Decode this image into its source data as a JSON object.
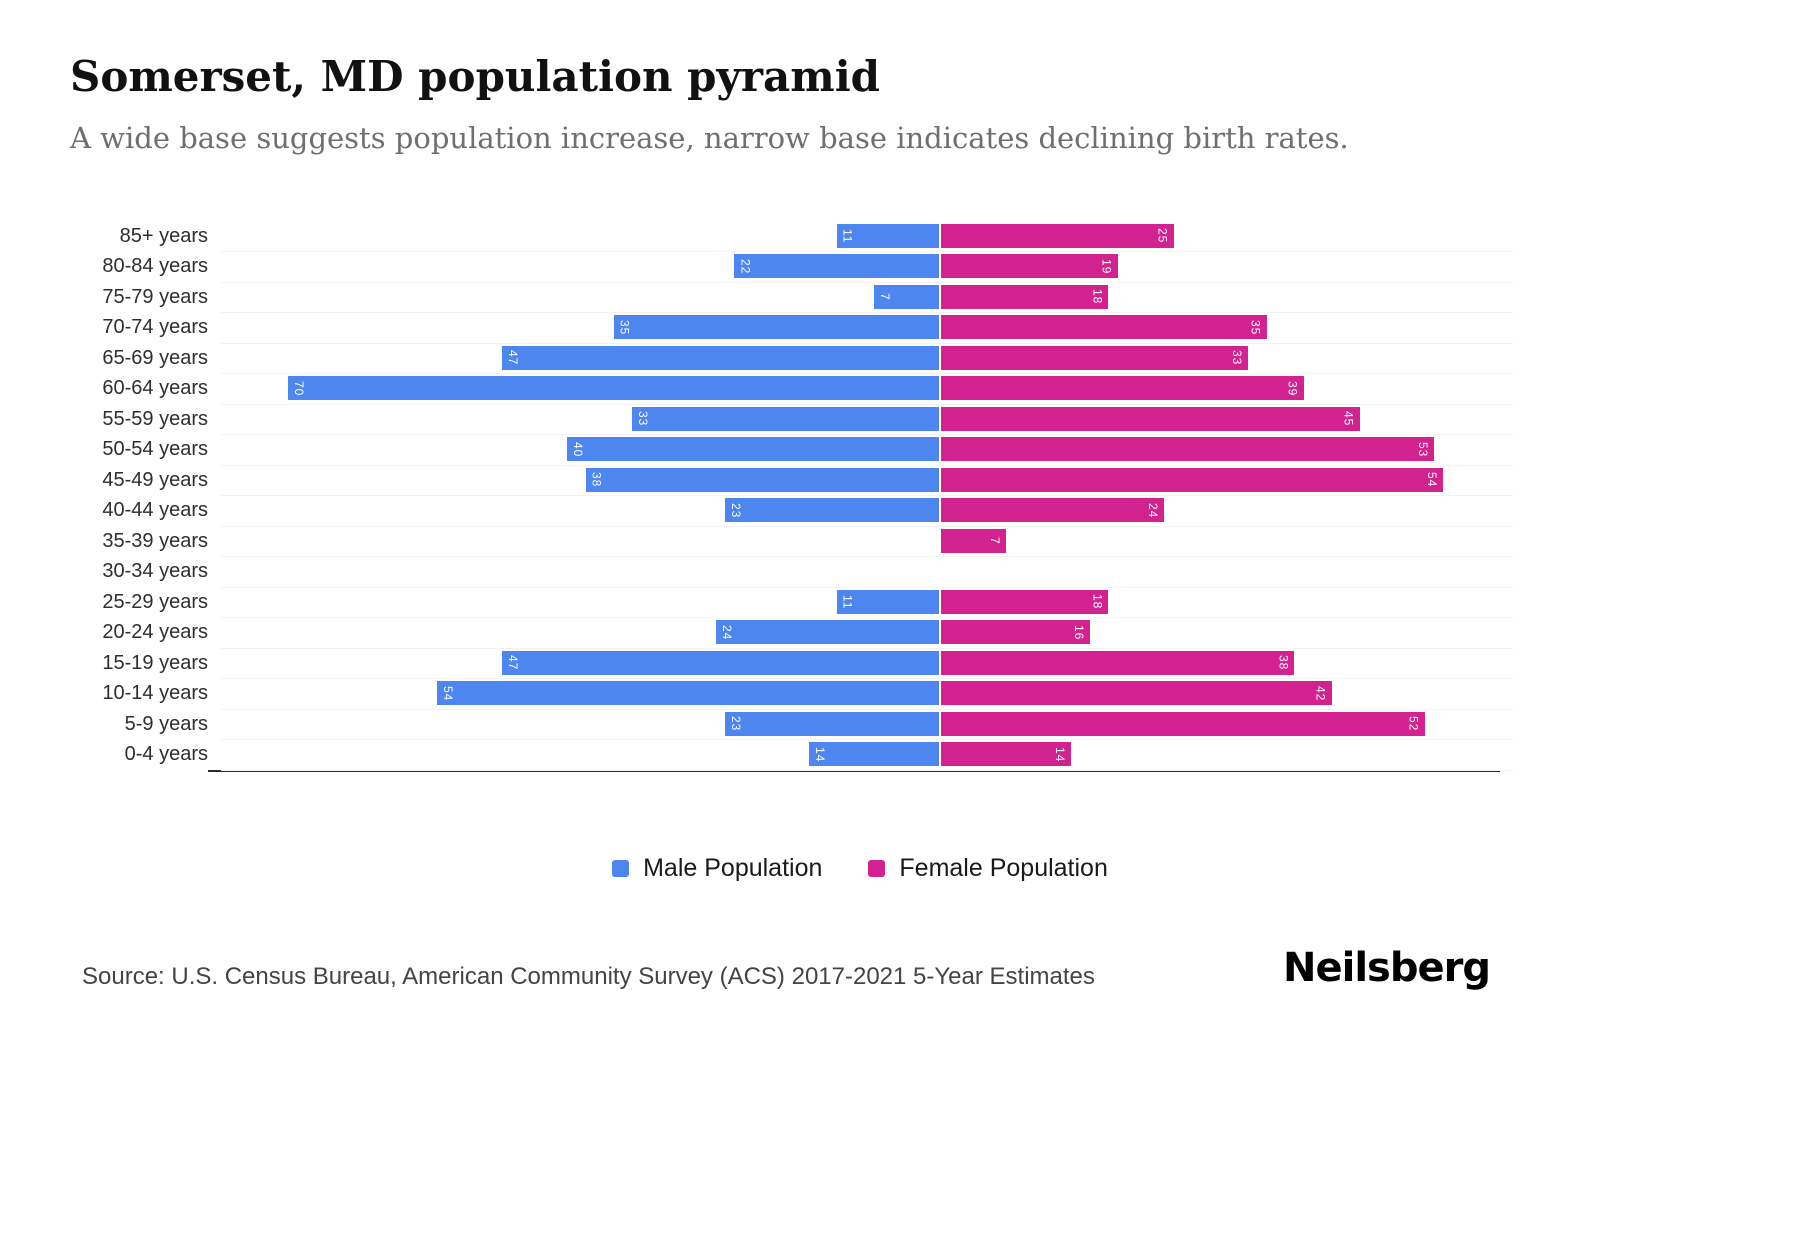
{
  "header": {
    "title": "Somerset, MD population pyramid",
    "subtitle": "A wide base suggests population increase, narrow base indicates declining birth rates."
  },
  "chart_data": {
    "type": "bar",
    "variant": "population-pyramid",
    "title": "Somerset, MD population pyramid",
    "subtitle": "A wide base suggests population increase, narrow base indicates declining birth rates.",
    "categories": [
      "85+ years",
      "80-84 years",
      "75-79 years",
      "70-74 years",
      "65-69 years",
      "60-64 years",
      "55-59 years",
      "50-54 years",
      "45-49 years",
      "40-44 years",
      "35-39 years",
      "30-34 years",
      "25-29 years",
      "20-24 years",
      "15-19 years",
      "10-14 years",
      "5-9 years",
      "0-4 years"
    ],
    "series": [
      {
        "name": "Male Population",
        "color": "#4C86EE",
        "side": "left",
        "values": [
          11,
          22,
          7,
          35,
          47,
          70,
          33,
          40,
          38,
          23,
          0,
          0,
          11,
          24,
          47,
          54,
          23,
          14
        ]
      },
      {
        "name": "Female Population",
        "color": "#D2228F",
        "side": "right",
        "values": [
          25,
          19,
          18,
          35,
          33,
          39,
          45,
          53,
          54,
          24,
          7,
          0,
          18,
          16,
          38,
          42,
          52,
          14
        ]
      }
    ],
    "value_labels": "inside-bar-end, rotated 90deg, white",
    "xmax_male": 77,
    "xmax_female": 61,
    "grid": "faint horizontal row lines",
    "baseline_axis": "bottom",
    "legend_position": "bottom-center"
  },
  "legend": {
    "male_label": "Male Population",
    "female_label": "Female Population"
  },
  "footer": {
    "source": "Source: U.S. Census Bureau, American Community Survey (ACS) 2017-2021 5-Year Estimates",
    "logo": "Neilsberg"
  },
  "colors": {
    "male": "#4C86EE",
    "female": "#D2228F",
    "title": "#111111",
    "subtitle": "#6f6f6f",
    "axis": "#2b2b2b"
  }
}
